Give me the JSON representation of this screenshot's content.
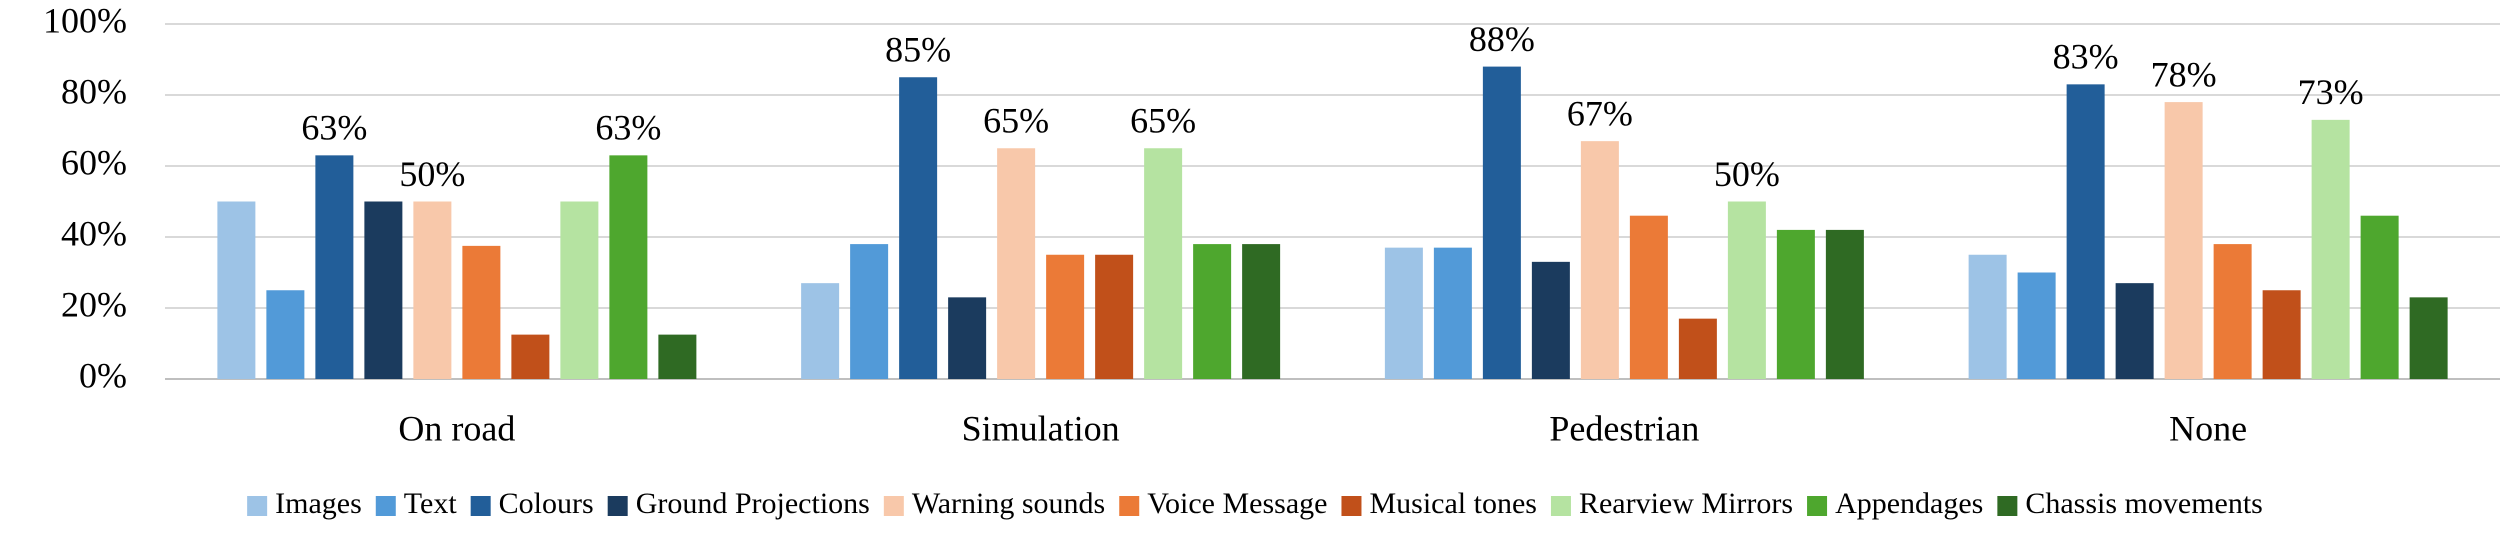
{
  "chart_data": {
    "type": "bar",
    "categories": [
      "On road",
      "Simulation",
      "Pedestrian",
      "None"
    ],
    "ylim": [
      0,
      100
    ],
    "yticks": [
      {
        "value": 0,
        "label": "0%"
      },
      {
        "value": 20,
        "label": "20%"
      },
      {
        "value": 40,
        "label": "40%"
      },
      {
        "value": 60,
        "label": "60%"
      },
      {
        "value": 80,
        "label": "80%"
      },
      {
        "value": 100,
        "label": "100%"
      }
    ],
    "grid": true,
    "legend": "bottom",
    "series": [
      {
        "name": "Images",
        "color": "#9dc3e6",
        "values": [
          50,
          27,
          37,
          35
        ]
      },
      {
        "name": "Text",
        "color": "#529ad8",
        "values": [
          25,
          38,
          37,
          30
        ]
      },
      {
        "name": "Colours",
        "color": "#225e99",
        "values": [
          63,
          85,
          88,
          83
        ],
        "value_labels": [
          "63%",
          "85%",
          "88%",
          "83%"
        ]
      },
      {
        "name": "Ground Projections",
        "color": "#1b3b5e",
        "values": [
          50,
          23,
          33,
          27
        ]
      },
      {
        "name": "Warning sounds",
        "color": "#f8c8aa",
        "values": [
          50,
          65,
          67,
          78
        ],
        "value_labels": [
          "50%",
          "65%",
          "67%",
          "78%"
        ]
      },
      {
        "name": "Voice Message",
        "color": "#eb7a37",
        "values": [
          37.5,
          35,
          46,
          38
        ]
      },
      {
        "name": "Musical tones",
        "color": "#c1501a",
        "values": [
          12.5,
          35,
          17,
          25
        ]
      },
      {
        "name": "Rearview Mirrors",
        "color": "#b5e3a1",
        "values": [
          50,
          65,
          50,
          73
        ],
        "value_labels": [
          null,
          "65%",
          "50%",
          "73%"
        ]
      },
      {
        "name": "Appendages",
        "color": "#4ea72e",
        "values": [
          63,
          38,
          42,
          46
        ],
        "value_labels": [
          "63%",
          null,
          null,
          null
        ]
      },
      {
        "name": "Chassis movements",
        "color": "#2f6a23",
        "values": [
          12.5,
          38,
          42,
          23
        ]
      }
    ]
  }
}
